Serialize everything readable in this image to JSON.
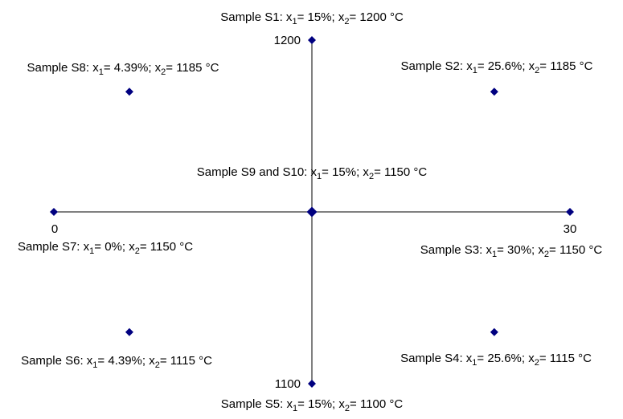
{
  "chart_data": {
    "type": "scatter",
    "title": "",
    "xlabel": "",
    "ylabel": "",
    "xlim": [
      0,
      30
    ],
    "ylim": [
      1100,
      1200
    ],
    "x_tick_labels": [
      "0",
      "30"
    ],
    "y_tick_labels": [
      "1100",
      "1200"
    ],
    "grid": false,
    "marker_color": "#000080",
    "axis_color": "#000000",
    "points": [
      {
        "x": 15,
        "y": 1200,
        "label": {
          "prefix": "Sample S1: x",
          "mid": "= 15%; x",
          "suffix": "= 1200 °C"
        }
      },
      {
        "x": 25.6,
        "y": 1185,
        "label": {
          "prefix": "Sample S2: x",
          "mid": "= 25.6%; x",
          "suffix": "= 1185 °C"
        }
      },
      {
        "x": 30,
        "y": 1150,
        "label": {
          "prefix": "Sample S3: x",
          "mid": "= 30%; x",
          "suffix": "= 1150 °C"
        }
      },
      {
        "x": 25.6,
        "y": 1115,
        "label": {
          "prefix": "Sample S4: x",
          "mid": "= 25.6%; x",
          "suffix": "= 1115 °C"
        }
      },
      {
        "x": 15,
        "y": 1100,
        "label": {
          "prefix": "Sample S5: x",
          "mid": "= 15%; x",
          "suffix": "= 1100 °C"
        }
      },
      {
        "x": 4.39,
        "y": 1115,
        "label": {
          "prefix": "Sample S6: x",
          "mid": "= 4.39%; x",
          "suffix": "= 1115 °C"
        }
      },
      {
        "x": 0,
        "y": 1150,
        "label": {
          "prefix": "Sample S7: x",
          "mid": "= 0%; x",
          "suffix": "= 1150 °C"
        }
      },
      {
        "x": 4.39,
        "y": 1185,
        "label": {
          "prefix": "Sample S8: x",
          "mid": "= 4.39%; x",
          "suffix": "= 1185 °C"
        }
      },
      {
        "x": 15,
        "y": 1150,
        "label": {
          "prefix": "Sample S9 and S10: x",
          "mid": "= 15%; x",
          "suffix": "= 1150 °C"
        }
      }
    ],
    "subscripts": [
      "1",
      "2"
    ]
  }
}
